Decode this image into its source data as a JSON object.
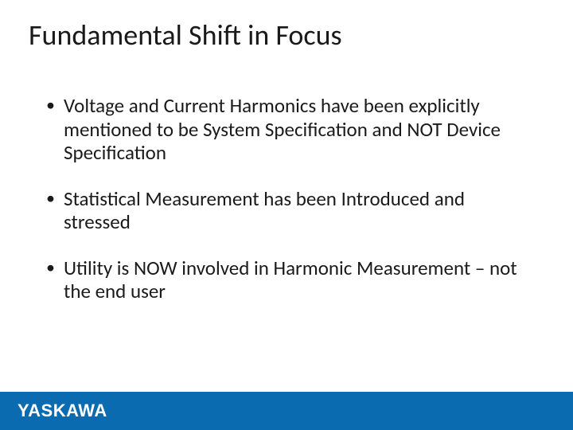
{
  "slide": {
    "title": "Fundamental Shift in Focus",
    "title_fontsize": 36,
    "title_color": "#1a1a1a",
    "body_fontsize": 25,
    "body_color": "#1a1a1a",
    "bullets": [
      {
        "text": "Voltage and Current Harmonics have been explicitly mentioned to be System Specification and NOT Device Specification"
      },
      {
        "text": "Statistical Measurement has been Introduced and stressed"
      },
      {
        "text": "Utility is NOW involved in Harmonic Measurement – not the end user"
      }
    ],
    "bullet_glyph": "•",
    "background_color": "#ffffff"
  },
  "footer": {
    "bar_color": "#0a6bb0",
    "brand_text": "YASKAWA",
    "brand_color": "#ffffff",
    "brand_fontsize": 22
  }
}
